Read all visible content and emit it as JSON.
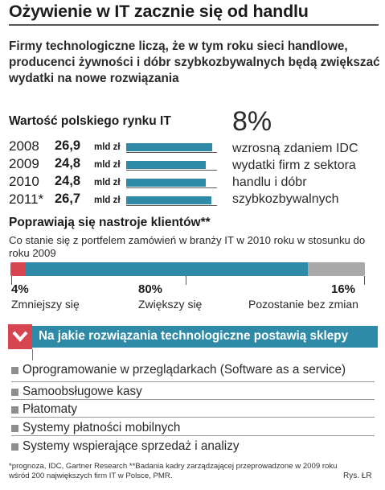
{
  "headline": "Ożywienie w IT zacznie się od handlu",
  "subtitle": "Firmy technologiczne liczą, że w tym roku sieci handlowe, producenci żywności i dóbr szybkozbywalnych będą zwiększać wydatki na nowe rozwiązania",
  "market": {
    "title": "Wartość polskiego rynku IT",
    "rows": [
      {
        "year": "2008",
        "value": "26,9",
        "unit": "mld zł"
      },
      {
        "year": "2009",
        "value": "24,8",
        "unit": "mld zł"
      },
      {
        "year": "2010",
        "value": "24,8",
        "unit": "mld zł"
      },
      {
        "year": "2011*",
        "value": "26,7",
        "unit": "mld zł"
      }
    ]
  },
  "idc_note": {
    "percent": "8%",
    "lines": [
      "wzrosną zdaniem IDC",
      "wydatki firm z sektora",
      "handlu i dóbr",
      "szybkozbywalnych"
    ]
  },
  "sentiment": {
    "title": "Poprawiają się nastroje klientów**",
    "question": "Co stanie się z portfelem zamówień w branży IT w 2010 roku w stosunku do roku 2009",
    "items": [
      {
        "label": "4%",
        "caption": "Zmniejszy się"
      },
      {
        "label": "80%",
        "caption": "Zwiększy się"
      },
      {
        "label": "16%",
        "caption": "Pozostanie bez zmian"
      }
    ]
  },
  "solutions": {
    "title": "Na jakie rozwiązania technologiczne postawią sklepy",
    "items": [
      "Oprogramowanie w przeglądarkach (Software as a service)",
      "Samoobsługowe kasy",
      "Płatomaty",
      "Systemy płatności mobilnych",
      "Systemy wspierające sprzedaż i analizy"
    ]
  },
  "footnote": "*prognoza, IDC, Gartner Research   **Badania kadry zarządzającej przeprowadzone w 2009 roku wśród 200 największych firm IT w Polsce, PMR.",
  "credit": "Rys. ŁR",
  "colors": {
    "teal": "#2e8aa6",
    "red": "#d64550",
    "gray": "#a9a9a9"
  },
  "icons": {
    "banner": "chevron-down-icon",
    "bullet": "square-bullet-icon"
  },
  "chart_data": [
    {
      "type": "bar",
      "title": "Wartość polskiego rynku IT",
      "categories": [
        "2008",
        "2009",
        "2010",
        "2011*"
      ],
      "values": [
        26.9,
        24.8,
        24.8,
        26.7
      ],
      "value_labels": [
        "26,9",
        "24,8",
        "24,8",
        "26,7"
      ],
      "unit": "mld zł",
      "orientation": "horizontal",
      "xlim": [
        0,
        26.9
      ]
    },
    {
      "type": "bar",
      "title": "Poprawiają się nastroje klientów**",
      "stacked": true,
      "orientation": "horizontal",
      "categories": [
        "Zmniejszy się",
        "Zwiększy się",
        "Pozostanie bez zmian"
      ],
      "values": [
        4,
        80,
        16
      ],
      "value_labels": [
        "4%",
        "80%",
        "16%"
      ],
      "colors": [
        "#d64550",
        "#2e8aa6",
        "#a9a9a9"
      ],
      "xlim": [
        0,
        100
      ]
    }
  ]
}
